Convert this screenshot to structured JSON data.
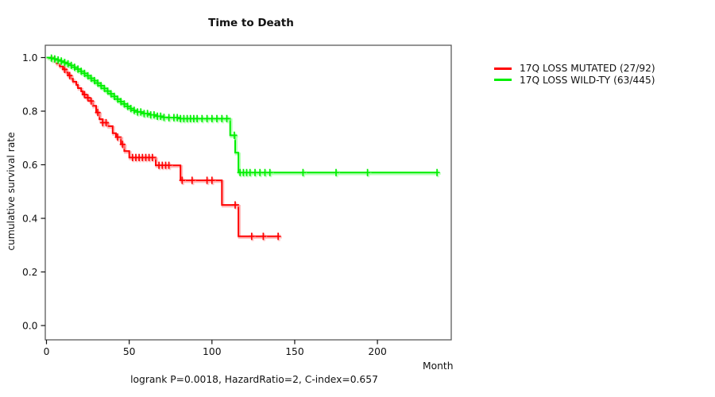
{
  "chart_data": {
    "type": "line",
    "subtype": "kaplan-meier-step-survival",
    "title": "Time to Death",
    "xlabel": "Month",
    "ylabel": "cumulative survival rate",
    "caption": "logrank P=0.0018, HazardRatio=2, C-index=0.657",
    "xlim": [
      0,
      244
    ],
    "ylim": [
      0,
      1
    ],
    "x_ticks": [
      0,
      50,
      100,
      150,
      200
    ],
    "y_ticks": [
      "0.0",
      "0.2",
      "0.4",
      "0.6",
      "0.8",
      "1.0"
    ],
    "grid": false,
    "legend_position": "right-outside",
    "axis_color": "#111111",
    "box_color": "#555555",
    "series": [
      {
        "name": "17Q LOSS MUTATED (27/92)",
        "color": "#ff0000",
        "halo": "#ffb0b0",
        "end_time": 140,
        "steps": [
          [
            0,
            1.0
          ],
          [
            4,
            0.989
          ],
          [
            6,
            0.978
          ],
          [
            8,
            0.967
          ],
          [
            10,
            0.956
          ],
          [
            12,
            0.944
          ],
          [
            13,
            0.933
          ],
          [
            15,
            0.921
          ],
          [
            16,
            0.91
          ],
          [
            18,
            0.898
          ],
          [
            19,
            0.886
          ],
          [
            21,
            0.874
          ],
          [
            22,
            0.862
          ],
          [
            24,
            0.85
          ],
          [
            26,
            0.838
          ],
          [
            28,
            0.82
          ],
          [
            30,
            0.795
          ],
          [
            32,
            0.77
          ],
          [
            34,
            0.757
          ],
          [
            37,
            0.744
          ],
          [
            40,
            0.718
          ],
          [
            42,
            0.703
          ],
          [
            45,
            0.676
          ],
          [
            47,
            0.651
          ],
          [
            50,
            0.627
          ],
          [
            66,
            0.598
          ],
          [
            81,
            0.542
          ],
          [
            106,
            0.45
          ],
          [
            116,
            0.333
          ]
        ],
        "censors": [
          11,
          14,
          23,
          25,
          27,
          31,
          34,
          36,
          43,
          46,
          52,
          54,
          56,
          58,
          60,
          62,
          64,
          68,
          70,
          72,
          74,
          82,
          88,
          97,
          100,
          114,
          124,
          131,
          140
        ]
      },
      {
        "name": "17Q LOSS WILD-TY (63/445)",
        "color": "#00ee00",
        "halo": "#a8ffa8",
        "end_time": 236,
        "steps": [
          [
            0,
            1.0
          ],
          [
            2,
            0.998
          ],
          [
            4,
            0.995
          ],
          [
            6,
            0.991
          ],
          [
            8,
            0.987
          ],
          [
            10,
            0.982
          ],
          [
            12,
            0.977
          ],
          [
            14,
            0.971
          ],
          [
            16,
            0.964
          ],
          [
            18,
            0.957
          ],
          [
            20,
            0.949
          ],
          [
            22,
            0.941
          ],
          [
            24,
            0.932
          ],
          [
            26,
            0.923
          ],
          [
            28,
            0.914
          ],
          [
            30,
            0.905
          ],
          [
            32,
            0.895
          ],
          [
            34,
            0.885
          ],
          [
            36,
            0.875
          ],
          [
            38,
            0.865
          ],
          [
            40,
            0.855
          ],
          [
            42,
            0.845
          ],
          [
            44,
            0.836
          ],
          [
            46,
            0.827
          ],
          [
            48,
            0.818
          ],
          [
            50,
            0.81
          ],
          [
            52,
            0.803
          ],
          [
            55,
            0.797
          ],
          [
            58,
            0.791
          ],
          [
            62,
            0.786
          ],
          [
            66,
            0.781
          ],
          [
            70,
            0.777
          ],
          [
            74,
            0.776
          ],
          [
            80,
            0.772
          ],
          [
            111,
            0.71
          ],
          [
            114,
            0.645
          ],
          [
            116,
            0.571
          ]
        ],
        "censors": [
          3,
          5,
          7,
          9,
          11,
          13,
          15,
          17,
          19,
          21,
          23,
          25,
          27,
          29,
          31,
          33,
          35,
          37,
          39,
          41,
          43,
          45,
          47,
          49,
          51,
          53,
          55,
          57,
          59,
          61,
          63,
          65,
          67,
          69,
          71,
          74,
          77,
          79,
          81,
          83,
          85,
          87,
          89,
          91,
          94,
          97,
          100,
          103,
          106,
          109,
          113.5,
          117,
          119,
          121,
          123,
          126,
          129,
          132,
          135,
          155,
          175,
          194,
          236
        ]
      }
    ]
  }
}
